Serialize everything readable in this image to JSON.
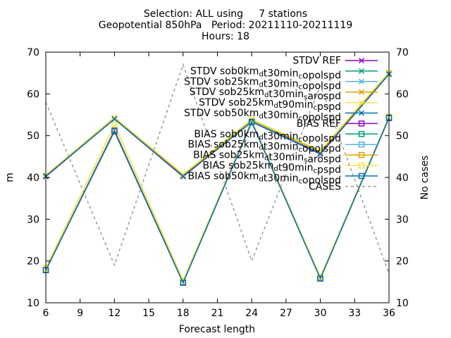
{
  "chart_data": {
    "type": "line",
    "title_lines": [
      "Selection: ALL using     7 stations",
      "Geopotential 850hPa   Period: 20211110-20211119",
      "Hours: 18"
    ],
    "xlabel": "Forecast length",
    "ylabel": "m",
    "y2label": "No cases",
    "x": [
      6,
      12,
      18,
      24,
      30,
      36
    ],
    "xticks": [
      6,
      9,
      12,
      15,
      18,
      21,
      24,
      27,
      30,
      33,
      36
    ],
    "xlim": [
      6,
      36
    ],
    "ylim": [
      10,
      70
    ],
    "yticks": [
      10,
      20,
      30,
      40,
      50,
      60,
      70
    ],
    "y2lim": [
      10,
      70
    ],
    "y2ticks": [
      10,
      20,
      30,
      40,
      50,
      60,
      70
    ],
    "grid": false,
    "legend_position": "top-right",
    "series": [
      {
        "name": "STDV REF",
        "color": "#9400d3",
        "marker": "x",
        "dash": false,
        "values": [
          40.2,
          54.0,
          40.2,
          53.3,
          45.6,
          64.7
        ]
      },
      {
        "name": "STDV sob0km_d t30min_c opolspd",
        "label_parts": [
          [
            "STDV sob0km",
            ""
          ],
          [
            "d",
            "sub"
          ],
          [
            "t30min",
            ""
          ],
          [
            "c",
            "sub"
          ],
          [
            "opolspd",
            ""
          ]
        ],
        "color": "#009e73",
        "marker": "x",
        "dash": false,
        "values": [
          40.4,
          54.0,
          40.4,
          53.5,
          45.8,
          64.9
        ]
      },
      {
        "name": "STDV sob25km_d t30min_c opolspd",
        "label_parts": [
          [
            "STDV sob25km",
            ""
          ],
          [
            "d",
            "sub"
          ],
          [
            "t30min",
            ""
          ],
          [
            "c",
            "sub"
          ],
          [
            "opolspd",
            ""
          ]
        ],
        "color": "#56b4e9",
        "marker": "x",
        "dash": false,
        "values": [
          40.4,
          54.1,
          40.5,
          53.5,
          45.9,
          64.9
        ]
      },
      {
        "name": "STDV sob25km_d t30min_s arospd",
        "label_parts": [
          [
            "STDV sob25km",
            ""
          ],
          [
            "d",
            "sub"
          ],
          [
            "t30min",
            ""
          ],
          [
            "s",
            "sub"
          ],
          [
            "arospd",
            ""
          ]
        ],
        "color": "#e69f00",
        "marker": "x",
        "dash": false,
        "values": [
          40.5,
          54.2,
          40.5,
          53.7,
          46.1,
          65.0
        ]
      },
      {
        "name": "STDV sob25km_d t90min_c pspd",
        "label_parts": [
          [
            "STDV sob25km",
            ""
          ],
          [
            "d",
            "sub"
          ],
          [
            "t90min",
            ""
          ],
          [
            "c",
            "sub"
          ],
          [
            "pspd",
            ""
          ]
        ],
        "color": "#f0e442",
        "marker": "x",
        "dash": false,
        "values": [
          40.6,
          54.4,
          40.8,
          53.9,
          46.4,
          65.2
        ]
      },
      {
        "name": "STDV sob50km_d t30min_c opolspd",
        "label_parts": [
          [
            "STDV sob50km",
            ""
          ],
          [
            "d",
            "sub"
          ],
          [
            "t30min",
            ""
          ],
          [
            "c",
            "sub"
          ],
          [
            "opolspd",
            ""
          ]
        ],
        "color": "#0072b2",
        "marker": "x",
        "dash": false,
        "values": [
          40.3,
          54.0,
          40.3,
          53.3,
          45.7,
          64.7
        ]
      },
      {
        "name": "BIAS REF",
        "color": "#9400d3",
        "marker": "square",
        "dash": false,
        "values": [
          17.8,
          51.0,
          14.8,
          53.2,
          15.8,
          54.2
        ]
      },
      {
        "name": "BIAS sob0km_d t30min_c opolspd",
        "label_parts": [
          [
            "BIAS sob0km",
            ""
          ],
          [
            "d",
            "sub"
          ],
          [
            "t30min",
            ""
          ],
          [
            "c",
            "sub"
          ],
          [
            "opolspd",
            ""
          ]
        ],
        "color": "#009e73",
        "marker": "square",
        "dash": false,
        "values": [
          17.8,
          51.2,
          14.9,
          53.3,
          15.9,
          54.3
        ]
      },
      {
        "name": "BIAS sob25km_d t30min_c opolspd",
        "label_parts": [
          [
            "BIAS sob25km",
            ""
          ],
          [
            "d",
            "sub"
          ],
          [
            "t30min",
            ""
          ],
          [
            "c",
            "sub"
          ],
          [
            "opolspd",
            ""
          ]
        ],
        "color": "#56b4e9",
        "marker": "square",
        "dash": false,
        "values": [
          17.8,
          51.2,
          14.9,
          53.3,
          15.9,
          54.3
        ]
      },
      {
        "name": "BIAS sob25km_d t30min_s arospd",
        "label_parts": [
          [
            "BIAS sob25km",
            ""
          ],
          [
            "d",
            "sub"
          ],
          [
            "t30min",
            ""
          ],
          [
            "s",
            "sub"
          ],
          [
            "arospd",
            ""
          ]
        ],
        "color": "#e69f00",
        "marker": "square",
        "dash": false,
        "values": [
          17.9,
          51.4,
          15.0,
          53.4,
          16.0,
          54.4
        ]
      },
      {
        "name": "BIAS sob25km_d t90min_c pspd",
        "label_parts": [
          [
            "BIAS sob25km",
            ""
          ],
          [
            "d",
            "sub"
          ],
          [
            "t90min",
            ""
          ],
          [
            "c",
            "sub"
          ],
          [
            "pspd",
            ""
          ]
        ],
        "color": "#f0e442",
        "marker": "square",
        "dash": false,
        "values": [
          18.4,
          52.6,
          15.4,
          53.6,
          16.3,
          54.6
        ]
      },
      {
        "name": "BIAS sob50km_d t30min_c opolspd",
        "label_parts": [
          [
            "BIAS sob50km",
            ""
          ],
          [
            "d",
            "sub"
          ],
          [
            "t30min",
            ""
          ],
          [
            "c",
            "sub"
          ],
          [
            "opolspd",
            ""
          ]
        ],
        "color": "#0072b2",
        "marker": "square",
        "dash": false,
        "values": [
          17.8,
          51.2,
          14.8,
          53.3,
          15.8,
          54.3
        ]
      },
      {
        "name": "CASES",
        "color": "#999999",
        "marker": "none",
        "dash": true,
        "axis": "y2",
        "values": [
          58.0,
          19.0,
          67.0,
          20.0,
          62.0,
          17.0
        ]
      }
    ]
  }
}
